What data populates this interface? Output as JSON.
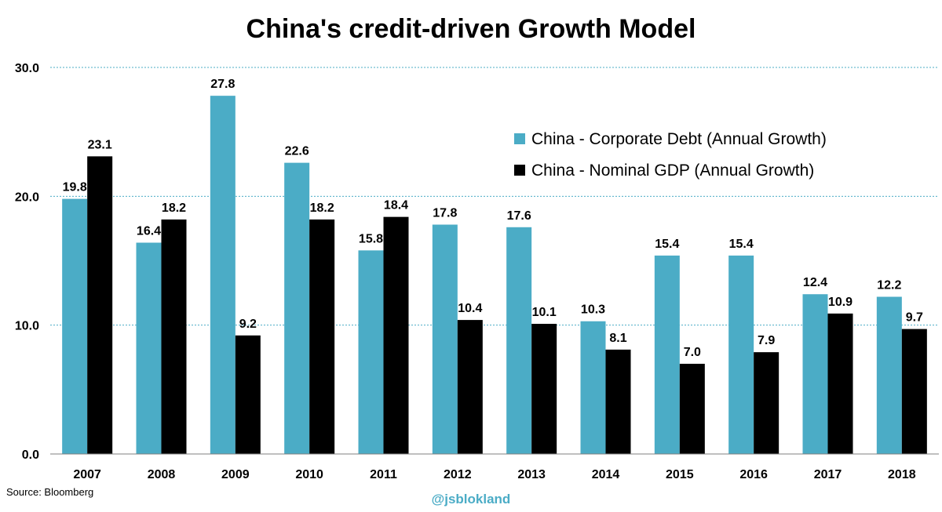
{
  "chart_data": {
    "type": "bar",
    "title": "China's credit-driven Growth Model",
    "categories": [
      "2007",
      "2008",
      "2009",
      "2010",
      "2011",
      "2012",
      "2013",
      "2014",
      "2015",
      "2016",
      "2017",
      "2018"
    ],
    "series": [
      {
        "name": "China - Corporate Debt (Annual Growth)",
        "color": "#4bacc6",
        "values": [
          19.8,
          16.4,
          27.8,
          22.6,
          15.8,
          17.8,
          17.6,
          10.3,
          15.4,
          15.4,
          12.4,
          12.2
        ]
      },
      {
        "name": "China - Nominal GDP (Annual Growth)",
        "color": "#000000",
        "values": [
          23.1,
          18.2,
          9.2,
          18.2,
          18.4,
          10.4,
          10.1,
          8.1,
          7.0,
          7.9,
          10.9,
          9.7
        ]
      }
    ],
    "ylim": [
      0,
      30
    ],
    "yticks": [
      "0.0",
      "10.0",
      "20.0",
      "30.0"
    ],
    "ytick_values": [
      0,
      10,
      20,
      30
    ],
    "xlabel": "",
    "ylabel": "",
    "grid": true,
    "gridline_color": "#4bacc6",
    "legend_position": "top-right"
  },
  "source": "Source: Bloomberg",
  "watermark": "@jsblokland"
}
